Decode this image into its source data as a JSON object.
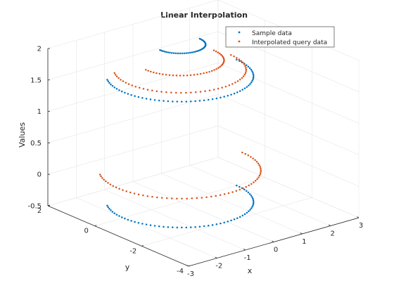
{
  "chart_data": {
    "type": "scatter",
    "title": "Linear Interpolation",
    "xlabel": "x",
    "ylabel": "y",
    "zlabel": "Values",
    "xlim": [
      -3,
      3
    ],
    "ylim": [
      -4,
      2
    ],
    "zlim": [
      -0.5,
      2
    ],
    "x_ticks": [
      -3,
      -2,
      -1,
      0,
      1,
      2,
      3
    ],
    "y_ticks": [
      -4,
      -2,
      0,
      2
    ],
    "z_ticks": [
      -0.5,
      0,
      0.5,
      1,
      1.5,
      2
    ],
    "grid": true,
    "legend_position": "top-right",
    "series": [
      {
        "name": "Sample data",
        "color": "#0072BD",
        "marker": "point",
        "arcs": [
          {
            "z": 2.0,
            "radius": 0.7,
            "theta_deg": [
              180,
              360
            ],
            "points": 40
          },
          {
            "z": 1.5,
            "radius": 2.0,
            "theta_deg": [
              150,
              360
            ],
            "points": 60
          },
          {
            "z": -0.5,
            "radius": 2.0,
            "theta_deg": [
              150,
              360
            ],
            "points": 60
          }
        ]
      },
      {
        "name": "Interpolated query data",
        "color": "#D95319",
        "marker": "point",
        "arcs": [
          {
            "z": 1.75,
            "radius": 1.2,
            "theta_deg": [
              180,
              360
            ],
            "points": 40
          },
          {
            "z": 1.6,
            "radius": 1.8,
            "theta_deg": [
              150,
              360
            ],
            "points": 50
          },
          {
            "z": 0.0,
            "radius": 2.2,
            "theta_deg": [
              150,
              360
            ],
            "points": 60
          }
        ]
      }
    ]
  }
}
